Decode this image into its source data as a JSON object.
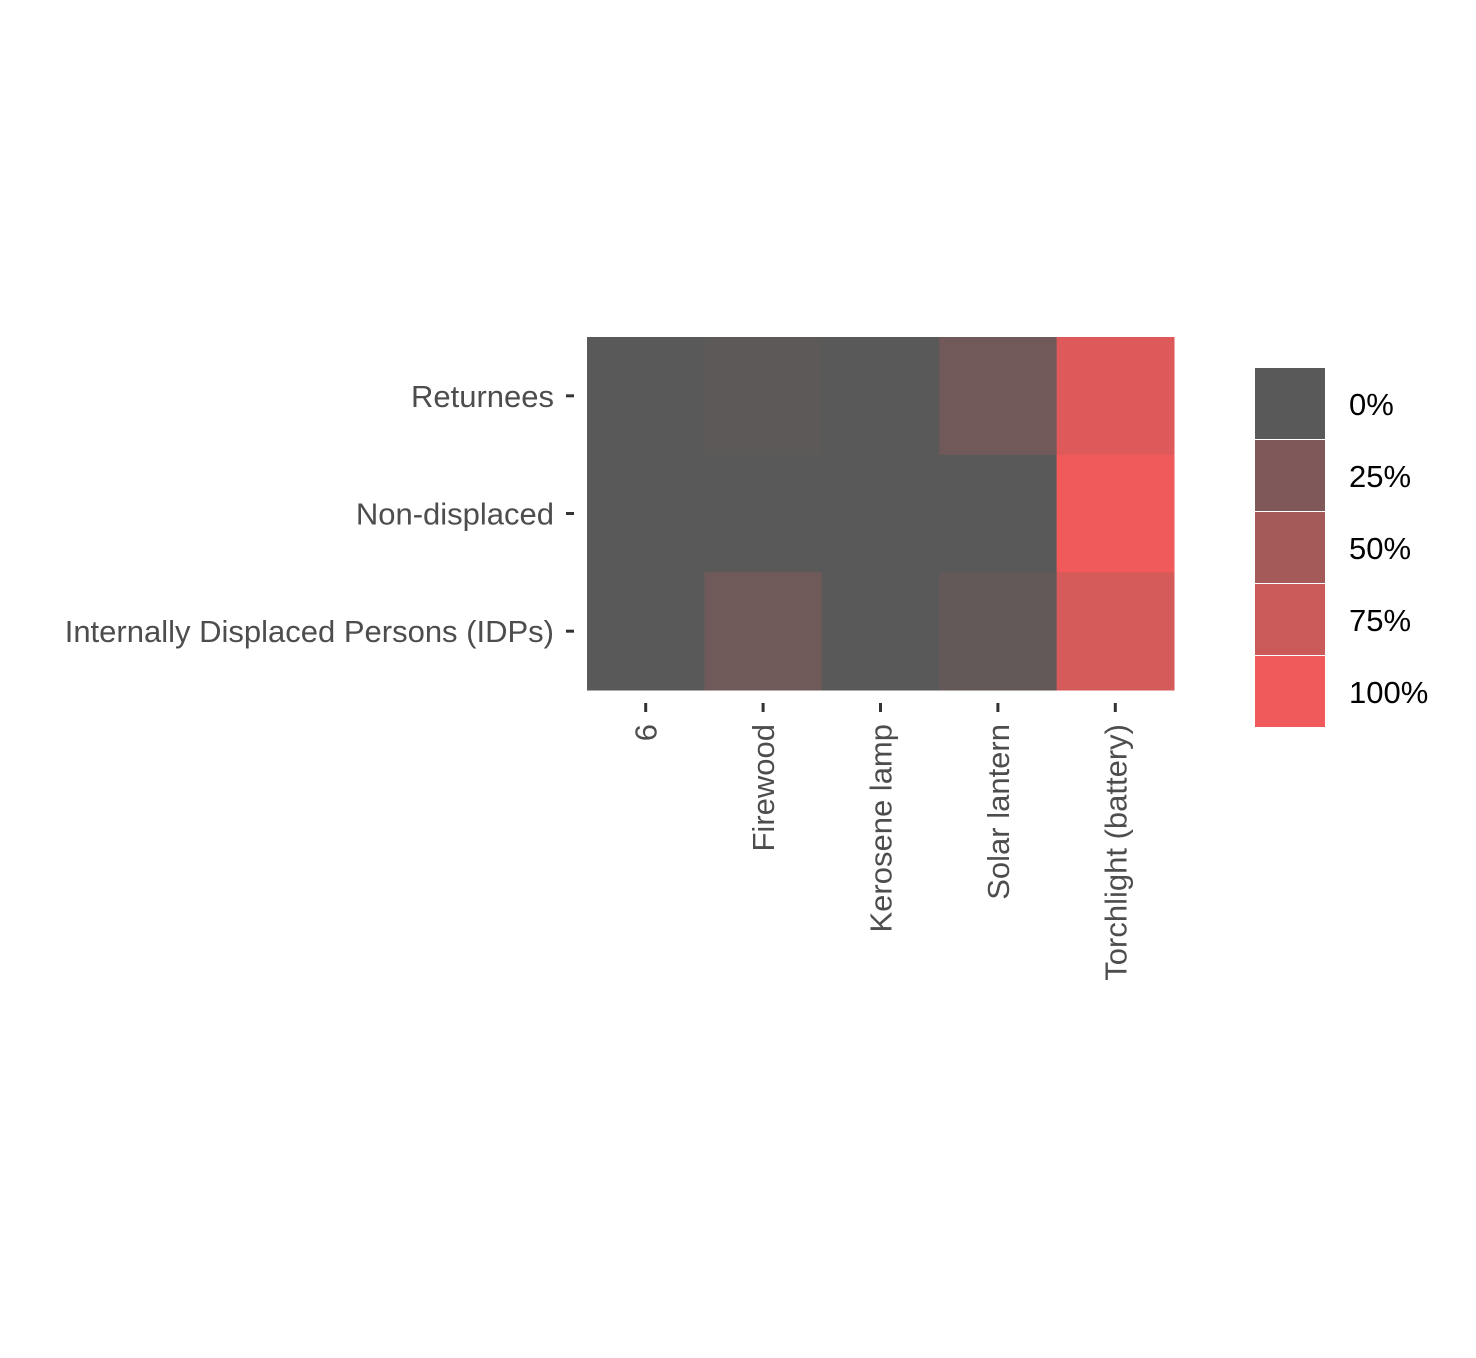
{
  "chart_data": {
    "type": "heatmap",
    "title": "",
    "xlabel": "",
    "ylabel": "",
    "x_categories": [
      "6",
      "Firewood",
      "Kerosene lamp",
      "Solar lantern",
      "Torchlight (battery)"
    ],
    "y_categories": [
      "Returnees",
      "Non-displaced",
      "Internally Displaced Persons (IDPs)"
    ],
    "values": [
      [
        0,
        3,
        0,
        16,
        88
      ],
      [
        0,
        0,
        0,
        0,
        100
      ],
      [
        0,
        15,
        0,
        7,
        82
      ]
    ],
    "value_range": [
      0,
      100
    ],
    "legend": {
      "position": "right",
      "labels": [
        "0%",
        "25%",
        "50%",
        "75%",
        "100%"
      ]
    },
    "colors": {
      "low": "#595959",
      "high": "#f05a5a"
    }
  }
}
